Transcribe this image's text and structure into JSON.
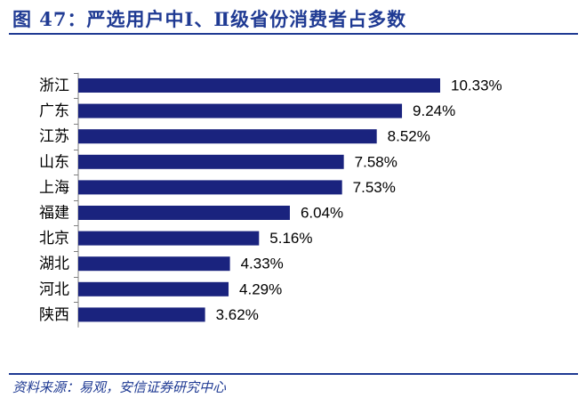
{
  "figure": {
    "label": "图 47",
    "separator": "：",
    "title": "严选用户中Ⅰ、Ⅱ级省份消费者占多数",
    "source": "资料来源：易观，安信证券研究中心"
  },
  "colors": {
    "bar": "#1a237e",
    "title": "#1f3a93",
    "text": "#000000"
  },
  "chart_data": {
    "type": "bar",
    "orientation": "horizontal",
    "title": "严选用户中Ⅰ、Ⅱ级省份消费者占多数",
    "categories": [
      "浙江",
      "广东",
      "江苏",
      "山东",
      "上海",
      "福建",
      "北京",
      "湖北",
      "河北",
      "陕西"
    ],
    "values": [
      10.33,
      9.24,
      8.52,
      7.58,
      7.53,
      6.04,
      5.16,
      4.33,
      4.29,
      3.62
    ],
    "value_labels": [
      "10.33%",
      "9.24%",
      "8.52%",
      "7.58%",
      "7.53%",
      "6.04%",
      "5.16%",
      "4.33%",
      "4.29%",
      "3.62%"
    ],
    "unit": "%",
    "xlim": [
      0,
      10.33
    ],
    "xlabel": "",
    "ylabel": "",
    "grid": false,
    "legend": "none"
  }
}
